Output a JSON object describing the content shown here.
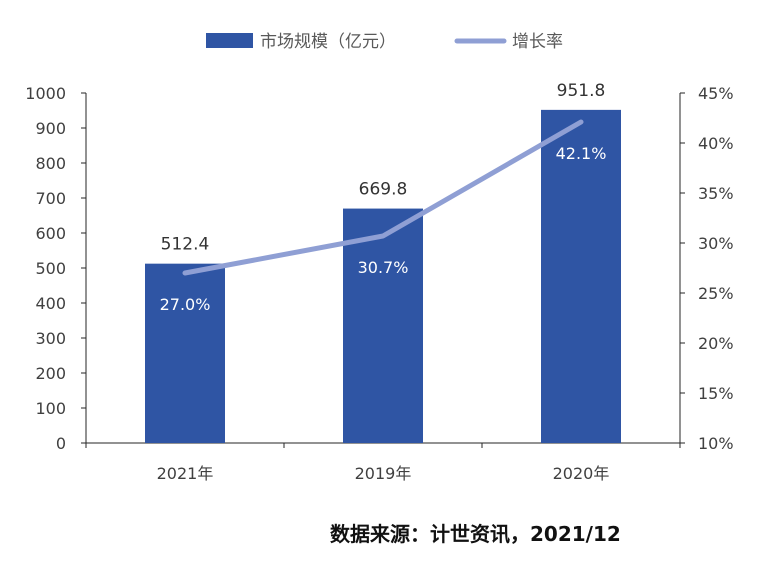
{
  "chart_data": {
    "type": "bar",
    "categories": [
      "2021年",
      "2019年",
      "2020年"
    ],
    "series": [
      {
        "name": "市场规模（亿元）",
        "type": "bar",
        "axis": "left",
        "values": [
          512.4,
          669.8,
          951.8
        ],
        "color": "#2f55a4",
        "labels": [
          "512.4",
          "669.8",
          "951.8"
        ]
      },
      {
        "name": "增长率",
        "type": "line",
        "axis": "right",
        "values": [
          27.0,
          30.7,
          42.1
        ],
        "color": "#8f9fd4",
        "labels": [
          "27.0%",
          "30.7%",
          "42.1%"
        ]
      }
    ],
    "y_left": {
      "ylim": [
        0,
        1000
      ],
      "ticks": [
        0,
        100,
        200,
        300,
        400,
        500,
        600,
        700,
        800,
        900,
        1000
      ],
      "tick_labels": [
        "0",
        "100",
        "200",
        "300",
        "400",
        "500",
        "600",
        "700",
        "800",
        "900",
        "1000"
      ]
    },
    "y_right": {
      "ylim": [
        10,
        45
      ],
      "ticks": [
        10,
        15,
        20,
        25,
        30,
        35,
        40,
        45
      ],
      "tick_labels": [
        "10%",
        "15%",
        "20%",
        "25%",
        "30%",
        "35%",
        "40%",
        "45%"
      ]
    },
    "legend": {
      "placement": "top-center",
      "items": [
        "市场规模（亿元）",
        "增长率"
      ]
    },
    "grid": false,
    "title": "",
    "xlabel": "",
    "ylabel": ""
  },
  "footer": {
    "source": "数据来源：计世资讯，2021/12"
  }
}
